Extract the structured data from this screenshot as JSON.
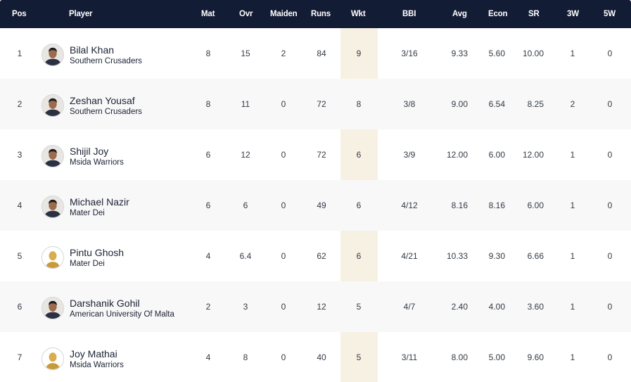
{
  "columns": {
    "pos": "Pos",
    "player": "Player",
    "mat": "Mat",
    "ovr": "Ovr",
    "maiden": "Maiden",
    "runs": "Runs",
    "wkt": "Wkt",
    "bbi": "BBI",
    "avg": "Avg",
    "econ": "Econ",
    "sr": "SR",
    "w3": "3W",
    "w5": "5W"
  },
  "colors": {
    "header_bg": "#131c35",
    "highlight_col": "#f7f1e4",
    "alt_row": "#f8f8f8"
  },
  "rows": [
    {
      "pos": "1",
      "name": "Bilal Khan",
      "team": "Southern Crusaders",
      "mat": "8",
      "ovr": "15",
      "maiden": "2",
      "runs": "84",
      "wkt": "9",
      "bbi": "3/16",
      "avg": "9.33",
      "econ": "5.60",
      "sr": "10.00",
      "w3": "1",
      "w5": "0",
      "avatar": "player-photo-icon"
    },
    {
      "pos": "2",
      "name": "Zeshan Yousaf",
      "team": "Southern Crusaders",
      "mat": "8",
      "ovr": "11",
      "maiden": "0",
      "runs": "72",
      "wkt": "8",
      "bbi": "3/8",
      "avg": "9.00",
      "econ": "6.54",
      "sr": "8.25",
      "w3": "2",
      "w5": "0",
      "avatar": "player-photo-icon"
    },
    {
      "pos": "3",
      "name": "Shijil Joy",
      "team": "Msida Warriors",
      "mat": "6",
      "ovr": "12",
      "maiden": "0",
      "runs": "72",
      "wkt": "6",
      "bbi": "3/9",
      "avg": "12.00",
      "econ": "6.00",
      "sr": "12.00",
      "w3": "1",
      "w5": "0",
      "avatar": "player-photo-icon"
    },
    {
      "pos": "4",
      "name": "Michael Nazir",
      "team": "Mater Dei",
      "mat": "6",
      "ovr": "6",
      "maiden": "0",
      "runs": "49",
      "wkt": "6",
      "bbi": "4/12",
      "avg": "8.16",
      "econ": "8.16",
      "sr": "6.00",
      "w3": "1",
      "w5": "0",
      "avatar": "player-photo-icon"
    },
    {
      "pos": "5",
      "name": "Pintu Ghosh",
      "team": "Mater Dei",
      "mat": "4",
      "ovr": "6.4",
      "maiden": "0",
      "runs": "62",
      "wkt": "6",
      "bbi": "4/21",
      "avg": "10.33",
      "econ": "9.30",
      "sr": "6.66",
      "w3": "1",
      "w5": "0",
      "avatar": "player-silhouette-icon"
    },
    {
      "pos": "6",
      "name": "Darshanik Gohil",
      "team": "American University Of Malta",
      "mat": "2",
      "ovr": "3",
      "maiden": "0",
      "runs": "12",
      "wkt": "5",
      "bbi": "4/7",
      "avg": "2.40",
      "econ": "4.00",
      "sr": "3.60",
      "w3": "1",
      "w5": "0",
      "avatar": "player-photo-icon"
    },
    {
      "pos": "7",
      "name": "Joy Mathai",
      "team": "Msida Warriors",
      "mat": "4",
      "ovr": "8",
      "maiden": "0",
      "runs": "40",
      "wkt": "5",
      "bbi": "3/11",
      "avg": "8.00",
      "econ": "5.00",
      "sr": "9.60",
      "w3": "1",
      "w5": "0",
      "avatar": "player-silhouette-icon"
    }
  ]
}
